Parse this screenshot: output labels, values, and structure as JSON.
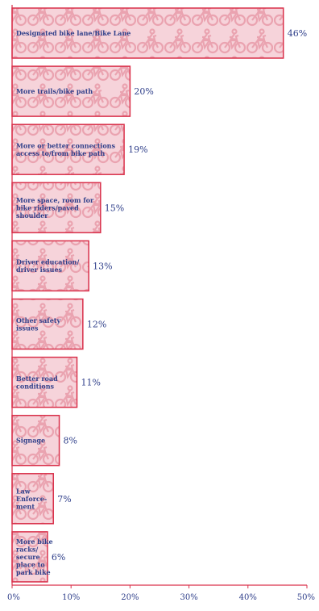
{
  "chart_data": {
    "type": "bar",
    "orientation": "horizontal",
    "title": "",
    "xlabel": "",
    "ylabel": "",
    "categories": [
      "Designated bike lane/Bike Lane",
      "More trails/bike path",
      "More or better connections access to/from bike path",
      "More space, room for bike riders/paved shoulder",
      "Driver education/ driver issues",
      "Other safety issues",
      "Better road conditions",
      "Signage",
      "Law Enforce-ment",
      "More bike racks/ secure place to park bike"
    ],
    "category_lines": [
      [
        "Designated bike lane/Bike Lane"
      ],
      [
        "More trails/bike path"
      ],
      [
        "More or better connections",
        "access to/from bike path"
      ],
      [
        "More space, room for",
        "bike riders/paved",
        "shoulder"
      ],
      [
        "Driver education/",
        "driver issues"
      ],
      [
        "Other safety",
        "issues"
      ],
      [
        "Better road",
        "conditions"
      ],
      [
        "Signage"
      ],
      [
        "Law",
        "Enforce-",
        "ment"
      ],
      [
        "More bike",
        "racks/",
        "secure",
        "place to",
        "park bike"
      ]
    ],
    "values": [
      46,
      20,
      19,
      15,
      13,
      12,
      11,
      8,
      7,
      6
    ],
    "value_labels": [
      "46%",
      "20%",
      "19%",
      "15%",
      "13%",
      "12%",
      "11%",
      "8%",
      "7%",
      "6%"
    ],
    "xlim": [
      0,
      50
    ],
    "xticks": [
      0,
      10,
      20,
      30,
      40,
      50
    ],
    "xtick_labels": [
      "0%",
      "10%",
      "20%",
      "30%",
      "40%",
      "50%"
    ],
    "grid": false,
    "legend": "none",
    "colors": {
      "bar_fill": "#f6d3da",
      "bar_border": "#d9304a",
      "bike_pattern": "#eaa3b0",
      "text": "#2f3f8a",
      "axis": "#d9304a"
    }
  }
}
